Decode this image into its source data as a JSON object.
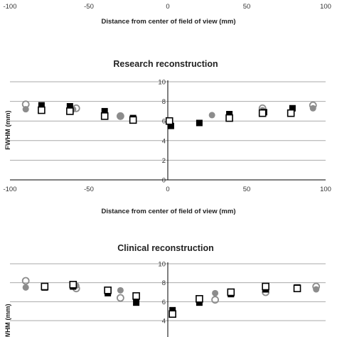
{
  "chart_data": [
    {
      "type": "scatter",
      "title": "",
      "xlabel": "Distance  from center of field of view (mm)",
      "ylabel": "",
      "xlim": [
        -100,
        100
      ],
      "xticks": [
        "-100",
        "-50",
        "0",
        "50",
        "100"
      ],
      "grid": false,
      "series": []
    },
    {
      "type": "scatter",
      "title": "Research reconstruction",
      "xlabel": "Distance  from center of field of view (mm)",
      "ylabel": "FWHM (mm)",
      "xlim": [
        -100,
        100
      ],
      "ylim": [
        0,
        10
      ],
      "xticks": [
        "-100",
        "-50",
        "0",
        "50",
        "100"
      ],
      "yticks": [
        "0",
        "2",
        "4",
        "6",
        "8",
        "10"
      ],
      "grid": true,
      "series": [
        {
          "marker": "gray-filled-circle",
          "color": "#8c8c8c",
          "points": [
            [
              -90,
              7.2
            ],
            [
              -60,
              7.2
            ],
            [
              -30,
              6.5
            ],
            [
              28,
              6.6
            ],
            [
              60,
              7.1
            ],
            [
              92,
              7.3
            ]
          ]
        },
        {
          "marker": "gray-open-circle",
          "color": "#8c8c8c",
          "points": [
            [
              -90,
              7.7
            ],
            [
              -58,
              7.3
            ],
            [
              -30,
              6.5
            ],
            [
              60,
              7.3
            ],
            [
              92,
              7.6
            ]
          ]
        },
        {
          "marker": "black-filled-square",
          "color": "#000000",
          "points": [
            [
              -80,
              7.6
            ],
            [
              -62,
              7.5
            ],
            [
              -40,
              7.0
            ],
            [
              -22,
              6.3
            ],
            [
              2,
              5.5
            ],
            [
              20,
              5.8
            ],
            [
              39,
              6.7
            ],
            [
              61,
              6.9
            ],
            [
              79,
              7.3
            ]
          ]
        },
        {
          "marker": "black-open-square",
          "color": "#000000",
          "points": [
            [
              -80,
              7.1
            ],
            [
              -62,
              7.0
            ],
            [
              -40,
              6.5
            ],
            [
              -22,
              6.1
            ],
            [
              1,
              6.0
            ],
            [
              39,
              6.3
            ],
            [
              60,
              6.8
            ],
            [
              78,
              6.8
            ]
          ]
        }
      ]
    },
    {
      "type": "scatter",
      "title": "Clinical reconstruction",
      "xlabel": "",
      "ylabel": "FWHM (mm)",
      "xlim": [
        -100,
        100
      ],
      "ylim": [
        4,
        10
      ],
      "yticks": [
        "4",
        "6",
        "8",
        "10"
      ],
      "grid": true,
      "series": [
        {
          "marker": "gray-filled-circle",
          "color": "#8c8c8c",
          "points": [
            [
              -90,
              7.5
            ],
            [
              -58,
              7.7
            ],
            [
              -30,
              7.2
            ],
            [
              30,
              6.9
            ],
            [
              62,
              7.6
            ],
            [
              94,
              7.3
            ]
          ]
        },
        {
          "marker": "gray-open-circle",
          "color": "#8c8c8c",
          "points": [
            [
              -90,
              8.2
            ],
            [
              -58,
              7.4
            ],
            [
              -30,
              6.4
            ],
            [
              30,
              6.2
            ],
            [
              62,
              7.0
            ],
            [
              94,
              7.6
            ]
          ]
        },
        {
          "marker": "black-filled-square",
          "color": "#000000",
          "points": [
            [
              -78,
              7.5
            ],
            [
              -60,
              7.6
            ],
            [
              -38,
              6.9
            ],
            [
              -20,
              5.9
            ],
            [
              3,
              5.1
            ],
            [
              20,
              5.9
            ],
            [
              40,
              6.8
            ],
            [
              62,
              7.3
            ],
            [
              82,
              7.5
            ]
          ]
        },
        {
          "marker": "black-open-square",
          "color": "#000000",
          "points": [
            [
              -78,
              7.6
            ],
            [
              -60,
              7.8
            ],
            [
              -38,
              7.2
            ],
            [
              -20,
              6.6
            ],
            [
              3,
              4.7
            ],
            [
              20,
              6.3
            ],
            [
              40,
              7.0
            ],
            [
              62,
              7.6
            ],
            [
              82,
              7.4
            ]
          ]
        }
      ]
    }
  ]
}
